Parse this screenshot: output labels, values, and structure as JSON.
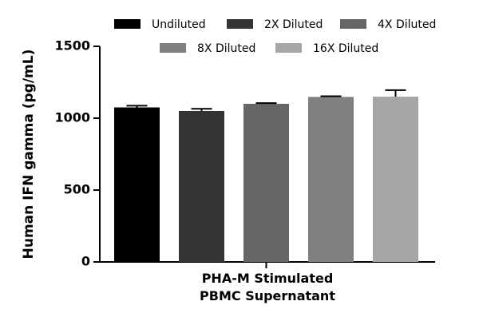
{
  "chart_data": {
    "type": "bar",
    "y_label": "Human IFN gamma (pg/mL)",
    "categories": [
      "PHA-M Stimulated\nPBMC Supernatant"
    ],
    "series": [
      {
        "name": "Undiluted",
        "color": "#000000",
        "values": [
          1075
        ],
        "errors": [
          12
        ]
      },
      {
        "name": "2X Diluted",
        "color": "#333333",
        "values": [
          1050
        ],
        "errors": [
          15
        ]
      },
      {
        "name": "4X Diluted",
        "color": "#666666",
        "values": [
          1100
        ],
        "errors": [
          5
        ]
      },
      {
        "name": "8X Diluted",
        "color": "#808080",
        "values": [
          1148
        ],
        "errors": [
          5
        ]
      },
      {
        "name": "16X Diluted",
        "color": "#a6a6a6",
        "values": [
          1150
        ],
        "errors": [
          45
        ]
      }
    ],
    "ylim": [
      0,
      1500
    ],
    "yticks": [
      0,
      500,
      1000,
      1500
    ],
    "legend": "top"
  }
}
